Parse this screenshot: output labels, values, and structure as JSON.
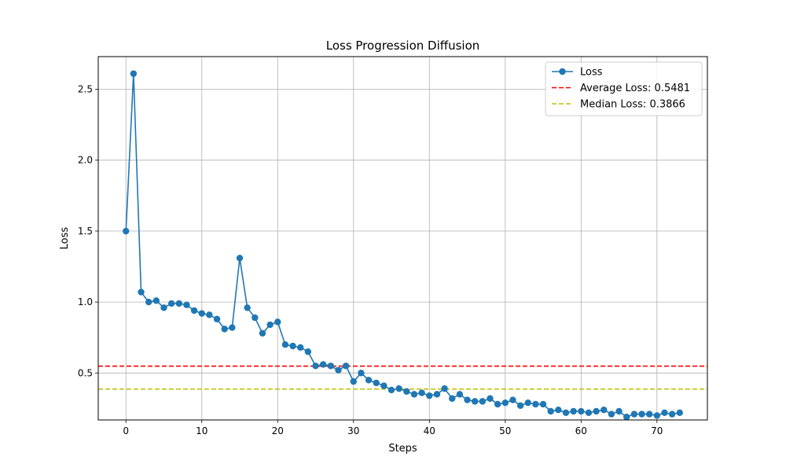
{
  "chart_data": {
    "type": "line",
    "title": "Loss Progression Diffusion",
    "xlabel": "Steps",
    "ylabel": "Loss",
    "xlim": [
      -3.65,
      76.65
    ],
    "ylim": [
      0.169,
      2.73
    ],
    "xticks": [
      0,
      10,
      20,
      30,
      40,
      50,
      60,
      70
    ],
    "yticks": [
      0.5,
      1.0,
      1.5,
      2.0,
      2.5
    ],
    "ytick_labels": [
      "0.5",
      "1.0",
      "1.5",
      "2.0",
      "2.5"
    ],
    "grid": true,
    "legend_position": "top-right",
    "series": [
      {
        "name": "Loss",
        "color": "#1f77b4",
        "marker": "circle",
        "x": [
          0,
          1,
          2,
          3,
          4,
          5,
          6,
          7,
          8,
          9,
          10,
          11,
          12,
          13,
          14,
          15,
          16,
          17,
          18,
          19,
          20,
          21,
          22,
          23,
          24,
          25,
          26,
          27,
          28,
          29,
          30,
          31,
          32,
          33,
          34,
          35,
          36,
          37,
          38,
          39,
          40,
          41,
          42,
          43,
          44,
          45,
          46,
          47,
          48,
          49,
          50,
          51,
          52,
          53,
          54,
          55,
          56,
          57,
          58,
          59,
          60,
          61,
          62,
          63,
          64,
          65,
          66,
          67,
          68,
          69,
          70,
          71,
          72,
          73
        ],
        "values": [
          1.5,
          2.61,
          1.07,
          1.0,
          1.01,
          0.96,
          0.99,
          0.99,
          0.98,
          0.94,
          0.92,
          0.91,
          0.88,
          0.81,
          0.82,
          1.31,
          0.96,
          0.89,
          0.78,
          0.84,
          0.86,
          0.7,
          0.69,
          0.68,
          0.65,
          0.55,
          0.56,
          0.55,
          0.52,
          0.55,
          0.44,
          0.5,
          0.45,
          0.43,
          0.41,
          0.38,
          0.39,
          0.37,
          0.35,
          0.36,
          0.34,
          0.35,
          0.39,
          0.32,
          0.35,
          0.31,
          0.3,
          0.3,
          0.32,
          0.28,
          0.29,
          0.31,
          0.27,
          0.29,
          0.28,
          0.28,
          0.23,
          0.24,
          0.22,
          0.23,
          0.23,
          0.22,
          0.23,
          0.24,
          0.21,
          0.23,
          0.19,
          0.21,
          0.21,
          0.21,
          0.2,
          0.22,
          0.21,
          0.22
        ]
      }
    ],
    "reference_lines": [
      {
        "name": "Average Loss: 0.5481",
        "value": 0.5481,
        "color": "#ff0000",
        "style": "dashed"
      },
      {
        "name": "Median Loss: 0.3866",
        "value": 0.3866,
        "color": "#bfbf00",
        "style": "dashed"
      }
    ]
  }
}
